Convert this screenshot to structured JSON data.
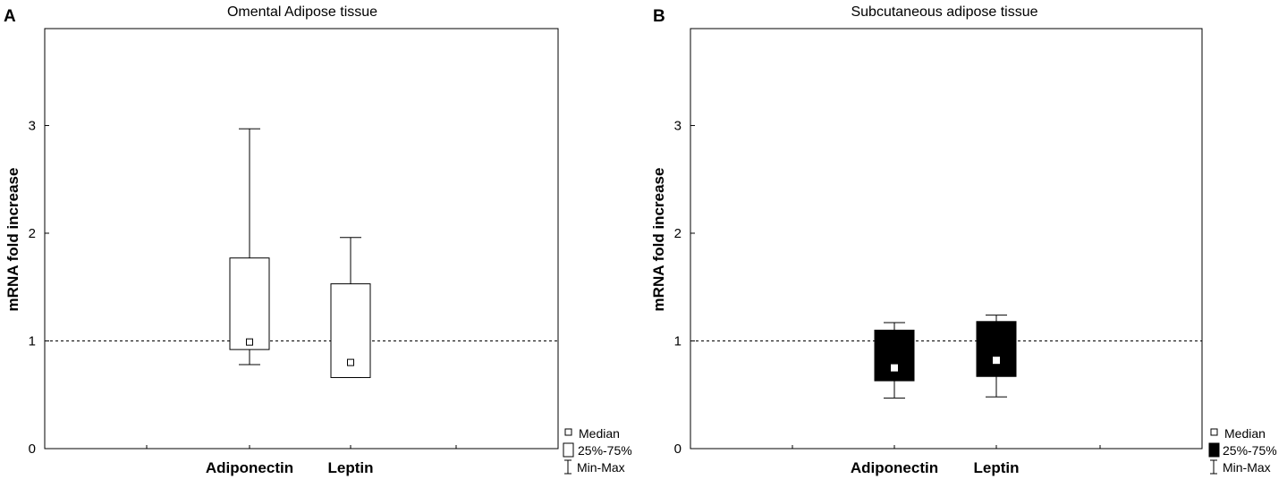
{
  "panels": [
    {
      "letter": "A",
      "title": "Omental Adipose tissue"
    },
    {
      "letter": "B",
      "title": "Subcutaneous adipose tissue"
    }
  ],
  "legend": {
    "median": "Median",
    "box": "25%-75%",
    "whisker": "Min-Max"
  },
  "chart_data": [
    {
      "type": "boxplot",
      "title": "Omental Adipose tissue",
      "xlabel": "",
      "ylabel": "mRNA fold increase",
      "ylim": [
        0,
        3.9
      ],
      "yticks": [
        0,
        1,
        2,
        3
      ],
      "reference_line": 1,
      "box_fill": "#ffffff",
      "median_fill": "#ffffff",
      "categories": [
        "Adiponectin",
        "Leptin"
      ],
      "boxes": [
        {
          "category": "Adiponectin",
          "min": 0.78,
          "q1": 0.92,
          "median": 0.99,
          "q3": 1.77,
          "max": 2.97
        },
        {
          "category": "Leptin",
          "min": 0.66,
          "q1": 0.66,
          "median": 0.8,
          "q3": 1.53,
          "max": 1.96
        }
      ]
    },
    {
      "type": "boxplot",
      "title": "Subcutaneous adipose tissue",
      "xlabel": "",
      "ylabel": "mRNA fold increase",
      "ylim": [
        0,
        3.9
      ],
      "yticks": [
        0,
        1,
        2,
        3
      ],
      "reference_line": 1,
      "box_fill": "#000000",
      "median_fill": "#ffffff",
      "categories": [
        "Adiponectin",
        "Leptin"
      ],
      "boxes": [
        {
          "category": "Adiponectin",
          "min": 0.47,
          "q1": 0.63,
          "median": 0.75,
          "q3": 1.1,
          "max": 1.17
        },
        {
          "category": "Leptin",
          "min": 0.48,
          "q1": 0.67,
          "median": 0.82,
          "q3": 1.18,
          "max": 1.24
        }
      ]
    }
  ]
}
